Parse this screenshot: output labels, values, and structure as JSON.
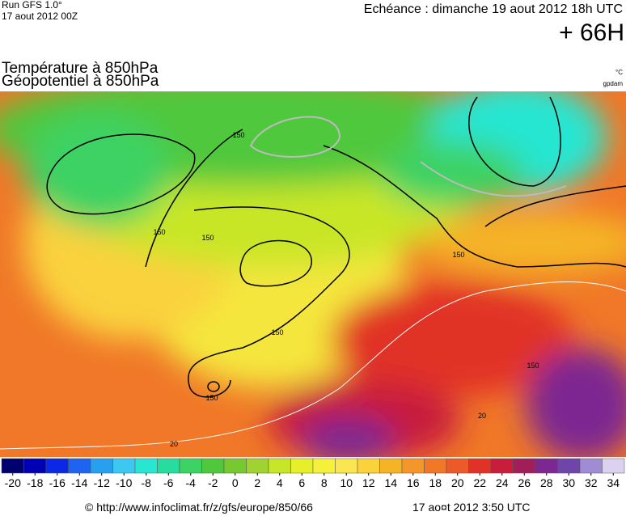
{
  "header": {
    "run": "Run GFS 1.0°",
    "run_date": "17 aout 2012 00Z",
    "echeance": "Echéance : dimanche 19 aout 2012 18h UTC",
    "lead": "+ 66H"
  },
  "titles": {
    "line1": "Température à 850hPa",
    "line2": "Géopotentiel à 850hPa",
    "unit1": "°C",
    "unit2": "gpdam"
  },
  "map": {
    "contour_labels": [
      "150",
      "150",
      "150",
      "150",
      "150",
      "150",
      "150",
      "20",
      "20"
    ]
  },
  "colorbar": {
    "lim": [
      -21,
      35
    ],
    "ticks": [
      -20,
      -18,
      -16,
      -14,
      -12,
      -10,
      -8,
      -6,
      -4,
      -2,
      0,
      2,
      4,
      6,
      8,
      10,
      12,
      14,
      16,
      18,
      20,
      22,
      24,
      26,
      28,
      30,
      32,
      34
    ],
    "colors": [
      "#00006e",
      "#0000b4",
      "#0a28e6",
      "#1e64f0",
      "#28a0f0",
      "#3cc8f0",
      "#28e6d2",
      "#28dca0",
      "#3cd264",
      "#50c83c",
      "#78c832",
      "#a0d232",
      "#c8e628",
      "#e6f028",
      "#f5f03c",
      "#fae650",
      "#fad23c",
      "#f5b428",
      "#f59628",
      "#f07828",
      "#eb5a28",
      "#e13228",
      "#c81e3c",
      "#a01e5a",
      "#7d2891",
      "#6e46aa",
      "#a08cd2",
      "#dcd2f0"
    ]
  },
  "footer": {
    "source": "© http://www.infoclimat.fr/z/gfs/europe/850/66",
    "date": "17 ao¤t 2012  3:50 UTC"
  }
}
